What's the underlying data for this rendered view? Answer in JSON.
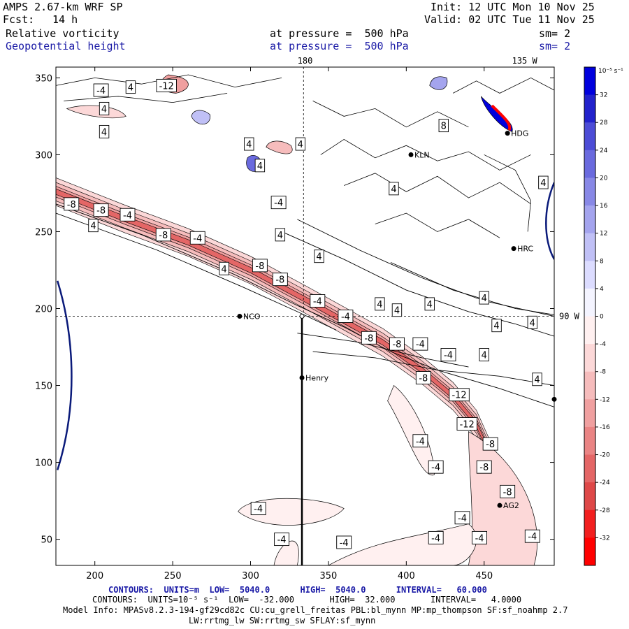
{
  "header": {
    "model": "AMPS 2.67-km WRF SP",
    "fcst_label": "Fcst:",
    "fcst_value": "14 h",
    "init": "Init: 12 UTC Mon 10 Nov 25",
    "valid": "Valid: 02 UTC Tue 11 Nov 25",
    "field1": "Relative vorticity",
    "field1_level": "at pressure =  500 hPa",
    "field1_sm": "sm= 2",
    "field2": "Geopotential height",
    "field2_level": "at pressure =  500 hPa",
    "field2_sm": "sm= 2"
  },
  "colors": {
    "pos_scale": [
      "#f4f4ff",
      "#dcdcff",
      "#c0c0f6",
      "#a4a4ee",
      "#8888e6",
      "#6a6ade",
      "#4c4cd6",
      "#2222cc",
      "#0000dd"
    ],
    "neg_scale": [
      "#fff0f0",
      "#fcd8d8",
      "#f6bcbc",
      "#f0a0a0",
      "#ea8484",
      "#e46666",
      "#de4848",
      "#f21f1f",
      "#ff0000"
    ],
    "height_contour": "#0a1a7a"
  },
  "chart_data": {
    "type": "contour_map",
    "xlim": [
      175,
      495
    ],
    "ylim": [
      33,
      357
    ],
    "x_ticks": [
      200,
      250,
      300,
      350,
      400,
      450
    ],
    "y_ticks": [
      50,
      100,
      150,
      200,
      250,
      300,
      350
    ],
    "meridian_labels": [
      {
        "text": "180",
        "x": 335
      },
      {
        "text": "135 W",
        "x": 476
      }
    ],
    "parallel_label": {
      "text": "90 W",
      "y": 195
    },
    "dashed_lon_x": 334,
    "dashed_lat_y": 195,
    "cross_section_line": {
      "x": 333,
      "y_from": 195,
      "y_to": 33
    },
    "stations": [
      {
        "name": "NCO",
        "x": 293,
        "y": 195
      },
      {
        "name": "Henry",
        "x": 333,
        "y": 155
      },
      {
        "name": "KLN",
        "x": 403,
        "y": 300
      },
      {
        "name": "HDG",
        "x": 465,
        "y": 314
      },
      {
        "name": "HRC",
        "x": 469,
        "y": 239
      },
      {
        "name": "AG2",
        "x": 460,
        "y": 72
      },
      {
        "name": "",
        "x": 495,
        "y": 141
      }
    ],
    "contour_labels": [
      {
        "v": "-4",
        "x": 204,
        "y": 342
      },
      {
        "v": "4",
        "x": 223,
        "y": 344
      },
      {
        "v": "-12",
        "x": 246,
        "y": 345
      },
      {
        "v": "4",
        "x": 206,
        "y": 330
      },
      {
        "v": "4",
        "x": 206,
        "y": 315
      },
      {
        "v": "4",
        "x": 299,
        "y": 307
      },
      {
        "v": "4",
        "x": 332,
        "y": 307
      },
      {
        "v": "4",
        "x": 306,
        "y": 293
      },
      {
        "v": "-4",
        "x": 318,
        "y": 269
      },
      {
        "v": "-8",
        "x": 185,
        "y": 268
      },
      {
        "v": "-8",
        "x": 204,
        "y": 264
      },
      {
        "v": "-4",
        "x": 221,
        "y": 261
      },
      {
        "v": "4",
        "x": 199,
        "y": 254
      },
      {
        "v": "-8",
        "x": 244,
        "y": 248
      },
      {
        "v": "-4",
        "x": 266,
        "y": 246
      },
      {
        "v": "4",
        "x": 319,
        "y": 248
      },
      {
        "v": "4",
        "x": 344,
        "y": 234
      },
      {
        "v": "-8",
        "x": 306,
        "y": 228
      },
      {
        "v": "4",
        "x": 283,
        "y": 226
      },
      {
        "v": "-8",
        "x": 319,
        "y": 219
      },
      {
        "v": "-4",
        "x": 343,
        "y": 205
      },
      {
        "v": "-4",
        "x": 361,
        "y": 195
      },
      {
        "v": "4",
        "x": 383,
        "y": 203
      },
      {
        "v": "4",
        "x": 394,
        "y": 199
      },
      {
        "v": "4",
        "x": 415,
        "y": 203
      },
      {
        "v": "4",
        "x": 450,
        "y": 207
      },
      {
        "v": "4",
        "x": 481,
        "y": 191
      },
      {
        "v": "4",
        "x": 458,
        "y": 189
      },
      {
        "v": "-8",
        "x": 376,
        "y": 181
      },
      {
        "v": "-8",
        "x": 394,
        "y": 177
      },
      {
        "v": "-4",
        "x": 409,
        "y": 177
      },
      {
        "v": "-4",
        "x": 427,
        "y": 170
      },
      {
        "v": "4",
        "x": 450,
        "y": 170
      },
      {
        "v": "-8",
        "x": 411,
        "y": 155
      },
      {
        "v": "-12",
        "x": 434,
        "y": 144
      },
      {
        "v": "4",
        "x": 484,
        "y": 154
      },
      {
        "v": "-12",
        "x": 439,
        "y": 125
      },
      {
        "v": "-4",
        "x": 409,
        "y": 114
      },
      {
        "v": "-8",
        "x": 454,
        "y": 112
      },
      {
        "v": "-4",
        "x": 419,
        "y": 97
      },
      {
        "v": "-8",
        "x": 450,
        "y": 97
      },
      {
        "v": "-8",
        "x": 465,
        "y": 81
      },
      {
        "v": "-4",
        "x": 305,
        "y": 70
      },
      {
        "v": "-4",
        "x": 320,
        "y": 50
      },
      {
        "v": "-4",
        "x": 436,
        "y": 64
      },
      {
        "v": "-4",
        "x": 419,
        "y": 51
      },
      {
        "v": "-4",
        "x": 447,
        "y": 51
      },
      {
        "v": "-4",
        "x": 481,
        "y": 52
      },
      {
        "v": "-4",
        "x": 360,
        "y": 48
      },
      {
        "v": "8",
        "x": 424,
        "y": 319
      },
      {
        "v": "4",
        "x": 392,
        "y": 278
      },
      {
        "v": "4",
        "x": 488,
        "y": 282
      }
    ]
  },
  "colorbar": {
    "units_label": "10⁻⁵ s⁻¹",
    "ticks": [
      "32",
      "28",
      "24",
      "20",
      "16",
      "12",
      "8",
      "4",
      "0",
      "-4",
      "-8",
      "-12",
      "-16",
      "-20",
      "-24",
      "-28",
      "-32"
    ]
  },
  "footer": {
    "contours_height": "CONTOURS:  UNITS=m  LOW=  5040.0      HIGH=  5040.0      INTERVAL=   60.000",
    "contours_vort": "CONTOURS:  UNITS=10⁻⁵ s⁻¹  LOW=  -32.000       HIGH=  32.000       INTERVAL=   4.0000",
    "model_info": "Model Info: MPASv8.2.3-194-gf29cd82c CU:cu_grell_freitas PBL:bl_mynn MP:mp_thompson SF:sf_noahmp 2.7",
    "model_info2": "LW:rrtmg_lw SW:rrtmg_sw SFLAY:sf_mynn"
  }
}
